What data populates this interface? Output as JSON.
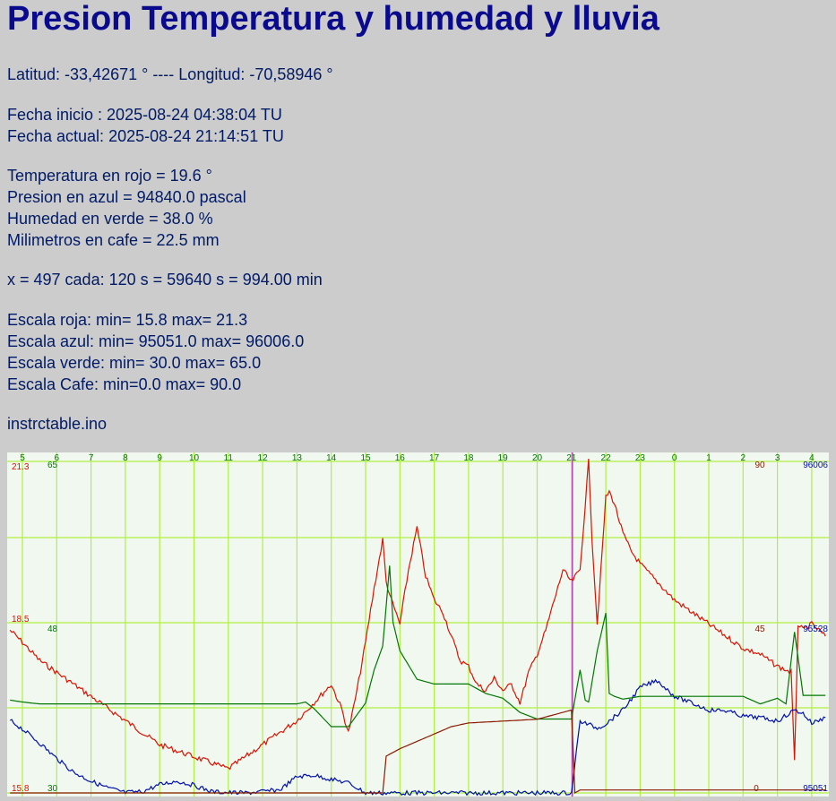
{
  "title": "Presion Temperatura y humedad y lluvia",
  "location": "Latitud: -33,42671 ° ---- Longitud: -70,58946 °",
  "dates": {
    "start": "Fecha inicio : 2025-08-24 04:38:04 TU",
    "current": "Fecha actual: 2025-08-24 21:14:51 TU"
  },
  "readings": {
    "temperature": "Temperatura en rojo = 19.6 °",
    "pressure": "Presion en azul = 94840.0 pascal",
    "humidity": "Humedad en verde = 38.0 %",
    "rain": "Milimetros en cafe = 22.5 mm"
  },
  "sampling": "x = 497 cada: 120 s = 59640 s = 994.00 min",
  "scales": {
    "red": "Escala roja: min= 15.8 max= 21.3",
    "blue": "Escala azul: min= 95051.0 max= 96006.0",
    "green": "Escala verde: min= 30.0 max= 65.0",
    "brown": "Escala Cafe: min=0.0 max= 90.0"
  },
  "filename": "instrctable.ino",
  "colors": {
    "background": "#cccccc",
    "plot_background": "#f0f8f0",
    "grid": "#b0f040",
    "temperature": "#dd1100",
    "pressure": "#0010aa",
    "humidity": "#007700",
    "rain": "#8b1a00",
    "marker": "#bb44bb"
  },
  "chart_data": {
    "type": "line",
    "x_unit": "hour of day (TU), 2025-08-24 to 2025-08-25",
    "hour_ticks": [
      "5",
      "6",
      "7",
      "8",
      "9",
      "10",
      "11",
      "12",
      "13",
      "14",
      "15",
      "16",
      "17",
      "18",
      "19",
      "20",
      "21",
      "22",
      "23",
      "0",
      "1",
      "2",
      "3",
      "4"
    ],
    "current_time_marker": "21",
    "axis_labels": {
      "left_red": {
        "max": "21.3",
        "mid": "18.5",
        "min": "15.8"
      },
      "left_green": {
        "max": "65",
        "mid": "48",
        "min": "30"
      },
      "right_brown": {
        "max": "90",
        "mid": "45",
        "min": "0"
      },
      "right_blue": {
        "max": "96006",
        "mid": "95528",
        "min": "95051"
      }
    },
    "series": [
      {
        "name": "Temperatura en rojo",
        "unit": "°C",
        "x": [
          4.64,
          5,
          5.5,
          6,
          6.5,
          7,
          7.5,
          8,
          8.5,
          9,
          9.5,
          10,
          10.5,
          11,
          11.5,
          12,
          12.5,
          13,
          13.5,
          14,
          14.3,
          14.5,
          14.75,
          15,
          15.25,
          15.5,
          15.6,
          15.75,
          16,
          16.25,
          16.5,
          16.75,
          17,
          17.25,
          17.5,
          17.75,
          18,
          18.25,
          18.5,
          18.75,
          19,
          19.25,
          19.5,
          19.75,
          20,
          20.25,
          20.5,
          20.75,
          21,
          21.25,
          21.5,
          21.6,
          21.75,
          22,
          22.1,
          22.25,
          22.5,
          22.75,
          23,
          23.5,
          24,
          24.5,
          25,
          25.5,
          26,
          26.5,
          27,
          27.4,
          27.5,
          27.6,
          27.75,
          28,
          28.4
        ],
        "values": [
          18.5,
          18.3,
          18.0,
          17.8,
          17.6,
          17.4,
          17.2,
          17.0,
          16.8,
          16.6,
          16.5,
          16.4,
          16.3,
          16.2,
          16.4,
          16.6,
          16.8,
          17.0,
          17.3,
          17.6,
          17.2,
          16.8,
          17.5,
          18.3,
          19.2,
          20.0,
          19.3,
          19.0,
          18.6,
          19.5,
          20.2,
          19.4,
          19.0,
          18.8,
          18.4,
          18.0,
          17.9,
          17.6,
          17.5,
          17.7,
          17.5,
          17.6,
          17.3,
          17.8,
          18.1,
          18.5,
          19.0,
          19.5,
          19.3,
          19.5,
          21.3,
          20.0,
          18.6,
          20.7,
          20.8,
          20.6,
          20.1,
          19.8,
          19.6,
          19.3,
          19.0,
          18.8,
          18.6,
          18.4,
          18.2,
          18.1,
          17.9,
          17.8,
          16.3,
          18.6,
          18.5,
          18.6,
          18.4
        ]
      },
      {
        "name": "Presion en azul",
        "unit": "pascal",
        "x": [
          4.64,
          5,
          5.5,
          6,
          6.5,
          7,
          7.5,
          8,
          8.5,
          9,
          9.5,
          10,
          10.5,
          11,
          11.5,
          12,
          12.5,
          13,
          13.5,
          14,
          14.5,
          15,
          15.5,
          16,
          16.5,
          17,
          17.5,
          18,
          18.5,
          19,
          19.5,
          20,
          20.5,
          21,
          21.25,
          21.5,
          21.75,
          22,
          22.5,
          23,
          23.5,
          24,
          24.5,
          25,
          25.5,
          26,
          26.5,
          27,
          27.5,
          27.75,
          28,
          28.4
        ],
        "values": [
          95260,
          95235,
          95195,
          95150,
          95110,
          95085,
          95065,
          95052,
          95055,
          95075,
          95085,
          95073,
          95055,
          95052,
          95051,
          95055,
          95060,
          95098,
          95102,
          95090,
          95080,
          95051,
          95051,
          95051,
          95051,
          95051,
          95051,
          95051,
          95051,
          95051,
          95051,
          95051,
          95051,
          95051,
          95258,
          95248,
          95238,
          95250,
          95290,
          95355,
          95375,
          95330,
          95310,
          95290,
          95288,
          95272,
          95268,
          95258,
          95290,
          95280,
          95252,
          95268
        ]
      },
      {
        "name": "Humedad en verde",
        "unit": "%",
        "x": [
          4.64,
          5,
          5.5,
          6,
          6.5,
          7,
          8,
          9,
          10,
          11,
          12,
          13,
          13.25,
          13.5,
          14,
          14.5,
          15,
          15.25,
          15.5,
          15.7,
          15.8,
          16,
          16.25,
          16.5,
          17,
          17.5,
          18,
          18.5,
          19,
          19.5,
          20,
          20.25,
          20.5,
          21,
          21.25,
          21.4,
          21.5,
          21.75,
          22,
          22.1,
          22.25,
          22.5,
          23,
          24,
          25,
          26,
          26.5,
          27,
          27.25,
          27.5,
          27.75,
          28,
          28.4
        ],
        "values": [
          39.8,
          39.6,
          39.4,
          39.4,
          39.4,
          39.4,
          39.4,
          39.4,
          39.4,
          39.4,
          39.4,
          39.4,
          39.6,
          38.9,
          37.0,
          37.0,
          39.5,
          43.0,
          45.5,
          54.0,
          48.0,
          45.0,
          43.5,
          42.0,
          41.5,
          41.5,
          41.5,
          40.5,
          40.0,
          38.5,
          37.8,
          37.8,
          37.8,
          37.8,
          43.0,
          39.8,
          39.6,
          45.0,
          49.0,
          40.5,
          40.2,
          39.9,
          40.2,
          40.2,
          40.2,
          40.2,
          39.4,
          40.0,
          39.4,
          47.0,
          40.3,
          40.3,
          40.3
        ]
      },
      {
        "name": "Milimetros en cafe",
        "unit": "mm",
        "x": [
          4.64,
          14,
          15,
          15.5,
          15.6,
          16,
          16.5,
          17,
          17.5,
          18,
          19,
          20,
          21,
          21.1,
          21.25,
          22,
          23,
          24,
          25,
          26,
          27,
          28,
          28.4
        ],
        "values": [
          0,
          0,
          0,
          0,
          10,
          12,
          14,
          16,
          18,
          19,
          19.5,
          20,
          22.5,
          0,
          0.8,
          0.8,
          0.8,
          0.8,
          0.8,
          0.8,
          0.8,
          0.8,
          0.8
        ]
      }
    ]
  }
}
